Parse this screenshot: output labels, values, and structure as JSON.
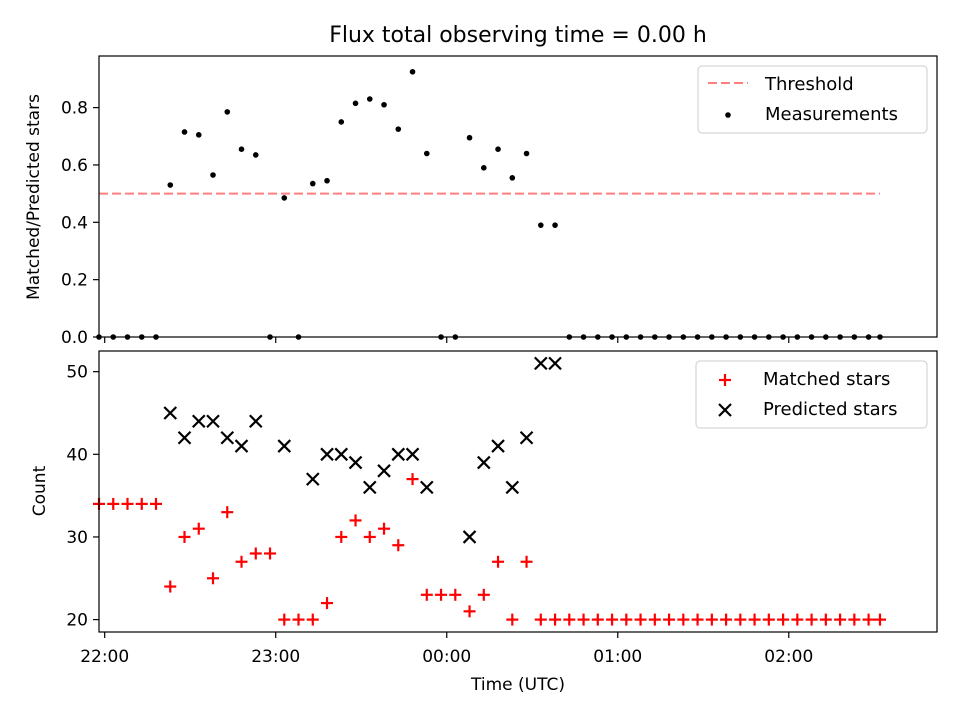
{
  "title": "Flux total observing time = 0.00 h",
  "chart_data": [
    {
      "type": "scatter",
      "ylabel": "Matched/Predicted stars",
      "xlabel": "",
      "xlim": [
        "21:58",
        "02:52"
      ],
      "ylim": [
        0,
        0.98
      ],
      "yticks": [
        0.0,
        0.2,
        0.4,
        0.6,
        0.8
      ],
      "ytick_labels": [
        "0.0",
        "0.2",
        "0.4",
        "0.6",
        "0.8"
      ],
      "grid": false,
      "legend_position": "top-right",
      "threshold": {
        "name": "Threshold",
        "value": 0.5,
        "x_range": [
          "21:58",
          "02:32"
        ],
        "color": "#ff7f7f",
        "style": "dashed"
      },
      "series": [
        {
          "name": "Measurements",
          "marker": "dot",
          "color": "#000000",
          "x": [
            "21:58",
            "22:03",
            "22:08",
            "22:13",
            "22:18",
            "22:23",
            "22:28",
            "22:33",
            "22:38",
            "22:43",
            "22:48",
            "22:53",
            "22:58",
            "23:03",
            "23:08",
            "23:13",
            "23:18",
            "23:23",
            "23:28",
            "23:33",
            "23:38",
            "23:43",
            "23:48",
            "23:53",
            "23:58",
            "00:03",
            "00:08",
            "00:13",
            "00:18",
            "00:23",
            "00:28",
            "00:33",
            "00:38",
            "00:43",
            "00:48",
            "00:53",
            "00:58",
            "01:03",
            "01:08",
            "01:13",
            "01:18",
            "01:23",
            "01:28",
            "01:33",
            "01:38",
            "01:43",
            "01:48",
            "01:53",
            "01:58",
            "02:03",
            "02:08",
            "02:13",
            "02:18",
            "02:23",
            "02:28",
            "02:32"
          ],
          "y": [
            0,
            0,
            0,
            0,
            0,
            0.53,
            0.715,
            0.705,
            0.565,
            0.785,
            0.655,
            0.635,
            0,
            0.485,
            0,
            0.535,
            0.545,
            0.75,
            0.815,
            0.83,
            0.81,
            0.725,
            0.925,
            0.64,
            0,
            0,
            0.695,
            0.59,
            0.655,
            0.555,
            0.64,
            0.39,
            0.39,
            0,
            0,
            0,
            0,
            0,
            0,
            0,
            0,
            0,
            0,
            0,
            0,
            0,
            0,
            0,
            0,
            0,
            0,
            0,
            0,
            0,
            0,
            0
          ]
        }
      ]
    },
    {
      "type": "scatter",
      "ylabel": "Count",
      "xlabel": "Time (UTC)",
      "xlim": [
        "21:58",
        "02:52"
      ],
      "ylim": [
        18.5,
        52.5
      ],
      "yticks": [
        20,
        30,
        40,
        50
      ],
      "ytick_labels": [
        "20",
        "30",
        "40",
        "50"
      ],
      "xticks": [
        "22:00",
        "23:00",
        "00:00",
        "01:00",
        "02:00"
      ],
      "grid": false,
      "legend_position": "top-right",
      "series": [
        {
          "name": "Matched stars",
          "marker": "plus",
          "color": "#ff0000",
          "x": [
            "21:58",
            "22:03",
            "22:08",
            "22:13",
            "22:18",
            "22:23",
            "22:28",
            "22:33",
            "22:38",
            "22:43",
            "22:48",
            "22:53",
            "22:58",
            "23:03",
            "23:08",
            "23:13",
            "23:18",
            "23:23",
            "23:28",
            "23:33",
            "23:38",
            "23:43",
            "23:48",
            "23:53",
            "23:58",
            "00:03",
            "00:08",
            "00:13",
            "00:18",
            "00:23",
            "00:28",
            "00:33",
            "00:38",
            "00:43",
            "00:48",
            "00:53",
            "00:58",
            "01:03",
            "01:08",
            "01:13",
            "01:18",
            "01:23",
            "01:28",
            "01:33",
            "01:38",
            "01:43",
            "01:48",
            "01:53",
            "01:58",
            "02:03",
            "02:08",
            "02:13",
            "02:18",
            "02:23",
            "02:28",
            "02:32"
          ],
          "y": [
            34,
            34,
            34,
            34,
            34,
            24,
            30,
            31,
            25,
            33,
            27,
            28,
            28,
            20,
            20,
            20,
            22,
            30,
            32,
            30,
            31,
            29,
            37,
            23,
            23,
            23,
            21,
            23,
            27,
            20,
            27,
            20,
            20,
            20,
            20,
            20,
            20,
            20,
            20,
            20,
            20,
            20,
            20,
            20,
            20,
            20,
            20,
            20,
            20,
            20,
            20,
            20,
            20,
            20,
            20,
            20
          ]
        },
        {
          "name": "Predicted stars",
          "marker": "x",
          "color": "#000000",
          "x": [
            "22:23",
            "22:28",
            "22:33",
            "22:38",
            "22:43",
            "22:48",
            "22:53",
            "23:03",
            "23:13",
            "23:18",
            "23:23",
            "23:28",
            "23:33",
            "23:38",
            "23:43",
            "23:48",
            "23:53",
            "00:08",
            "00:13",
            "00:18",
            "00:23",
            "00:28",
            "00:33",
            "00:38"
          ],
          "y": [
            45,
            42,
            44,
            44,
            42,
            41,
            44,
            41,
            37,
            40,
            40,
            39,
            36,
            38,
            40,
            40,
            36,
            30,
            39,
            41,
            36,
            42,
            51,
            51
          ]
        }
      ]
    }
  ]
}
